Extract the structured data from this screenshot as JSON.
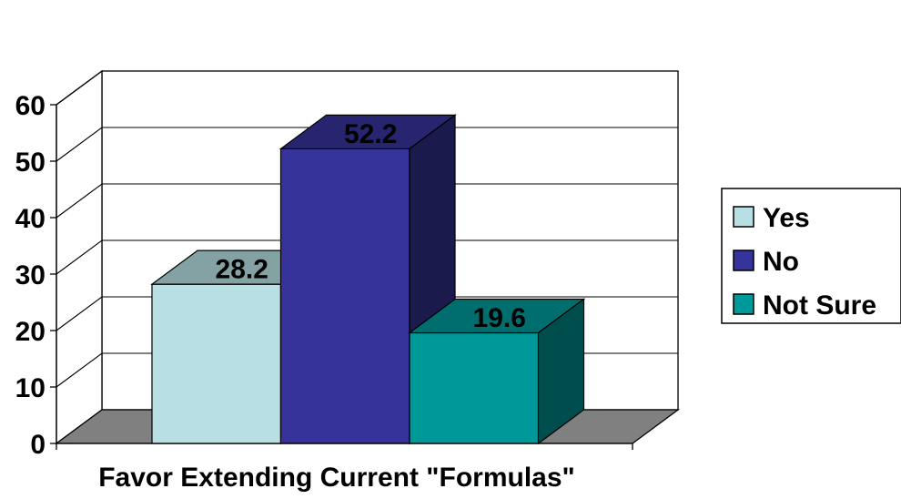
{
  "chart_data": {
    "type": "bar",
    "title": "",
    "xlabel": "Favor Extending Current \"Formulas\"",
    "ylabel": "",
    "ylim": [
      0,
      60
    ],
    "yticks": [
      0,
      10,
      20,
      30,
      40,
      50,
      60
    ],
    "grid": true,
    "three_d": true,
    "legend_position": "right",
    "series": [
      {
        "name": "Yes",
        "value": 28.2,
        "label": "28.2",
        "color": "#B8E0E4"
      },
      {
        "name": "No",
        "value": 52.2,
        "label": "52.2",
        "color": "#36349A"
      },
      {
        "name": "Not Sure",
        "value": 19.6,
        "label": "19.6",
        "color": "#009999"
      }
    ]
  }
}
